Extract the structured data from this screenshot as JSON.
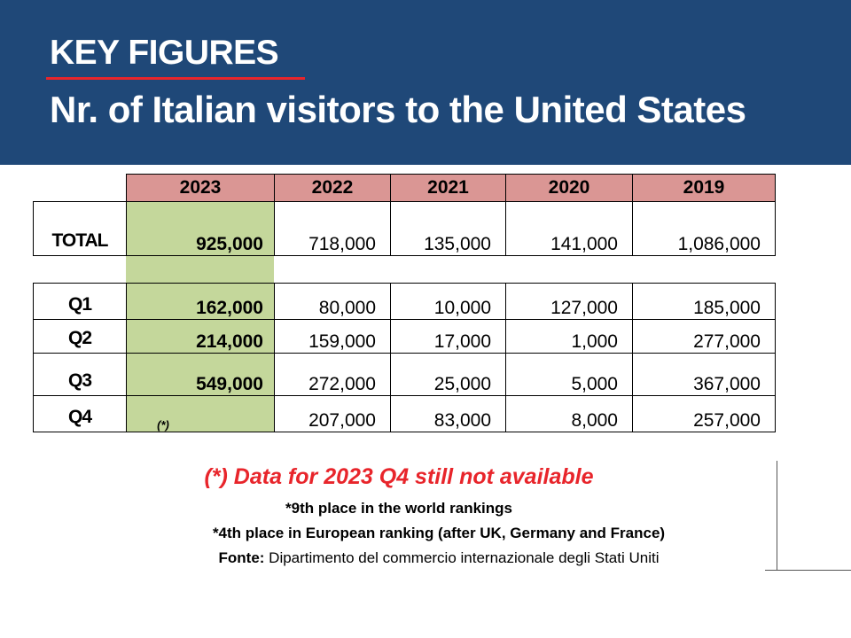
{
  "header": {
    "title": "KEY FIGURES",
    "subtitle": "Nr. of Italian visitors to the United States",
    "background_color": "#1f4878",
    "underline_color": "#e8252b"
  },
  "table": {
    "years": [
      "2023",
      "2022",
      "2021",
      "2020",
      "2019"
    ],
    "header_color": "#da9694",
    "highlight_color": "#c4d79b",
    "rows": [
      {
        "label": "TOTAL",
        "values": [
          "925,000",
          "718,000",
          "135,000",
          "141,000",
          "1,086,000"
        ]
      },
      {
        "label": "Q1",
        "values": [
          "162,000",
          "80,000",
          "10,000",
          "127,000",
          "185,000"
        ]
      },
      {
        "label": "Q2",
        "values": [
          "214,000",
          "159,000",
          "17,000",
          "1,000",
          "277,000"
        ]
      },
      {
        "label": "Q3",
        "values": [
          "549,000",
          "272,000",
          "25,000",
          "5,000",
          "367,000"
        ]
      },
      {
        "label": "Q4",
        "values": [
          "(*)",
          "207,000",
          "83,000",
          "8,000",
          "257,000"
        ]
      }
    ]
  },
  "notes": {
    "availability": "(*) Data for 2023 Q4 still not available",
    "world_rank": "*9th place in the world rankings",
    "europe_rank": "*4th place in European ranking (after UK, Germany and France)",
    "source_label": "Fonte:",
    "source_text": " Dipartimento del commercio internazionale degli Stati Uniti"
  }
}
